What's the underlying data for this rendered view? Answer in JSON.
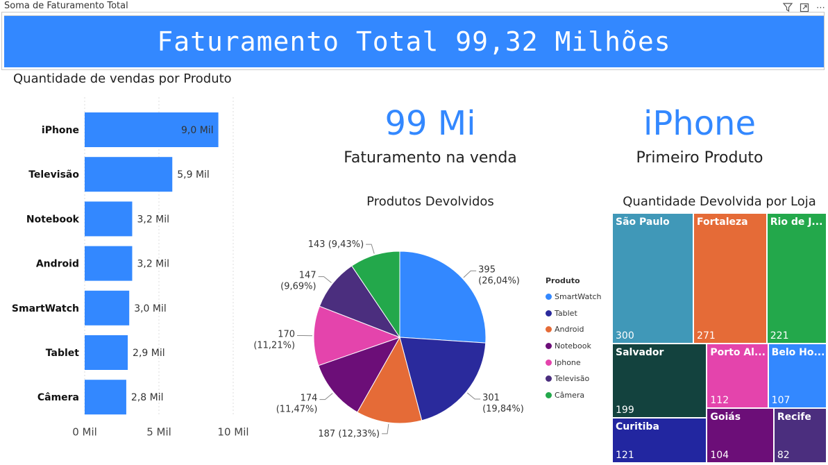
{
  "header": {
    "visual_label": "Soma de Faturamento Total",
    "banner_text": "Faturamento Total 99,32 Milhões"
  },
  "kpis": [
    {
      "value": "99 Mi",
      "label": "Faturamento na venda"
    },
    {
      "value": "iPhone",
      "label": "Primeiro Produto"
    }
  ],
  "colors": {
    "accent": "#3388ff"
  },
  "chart_data": [
    {
      "type": "bar",
      "orientation": "horizontal",
      "title": "Quantidade de vendas por Produto",
      "categories": [
        "iPhone",
        "Televisão",
        "Notebook",
        "Android",
        "SmartWatch",
        "Tablet",
        "Câmera"
      ],
      "values": [
        9000,
        5900,
        3200,
        3200,
        3000,
        2900,
        2800
      ],
      "data_labels": [
        "9,0 Mil",
        "5,9 Mil",
        "3,2 Mil",
        "3,2 Mil",
        "3,0 Mil",
        "2,9 Mil",
        "2,8 Mil"
      ],
      "xlim": [
        0,
        10000
      ],
      "x_ticks": [
        0,
        5000,
        10000
      ],
      "x_tick_labels": [
        "0 Mil",
        "5 Mil",
        "10 Mil"
      ],
      "grid": true,
      "color": "#3388ff"
    },
    {
      "type": "pie",
      "title": "Produtos Devolvidos",
      "legend_title": "Produto",
      "legend_position": "right",
      "labels": [
        "SmartWatch",
        "Tablet",
        "Android",
        "Notebook",
        "Iphone",
        "Televisão",
        "Câmera"
      ],
      "values": [
        395,
        301,
        187,
        174,
        170,
        147,
        143
      ],
      "data_labels": [
        "395 (26,04%)",
        "301 (19,84%)",
        "187 (12,33%)",
        "174 (11,47%)",
        "170 (11,21%)",
        "147 (9,69%)",
        "143 (9,43%)"
      ],
      "colors": [
        "#3388ff",
        "#2a2a9c",
        "#e56b37",
        "#6c0e78",
        "#e444ac",
        "#4b2e7e",
        "#23a84b"
      ]
    },
    {
      "type": "treemap",
      "title": "Quantidade Devolvida por Loja",
      "labels": [
        "São Paulo",
        "Fortaleza",
        "Rio de J...",
        "Salvador",
        "Porto Al...",
        "Belo Ho...",
        "Curitiba",
        "Goiás",
        "Recife"
      ],
      "values": [
        300,
        271,
        221,
        199,
        112,
        107,
        121,
        104,
        82
      ],
      "colors": [
        "#4098b8",
        "#e56b37",
        "#23a84b",
        "#13423e",
        "#e444ac",
        "#3388ff",
        "#2226a0",
        "#6c0e78",
        "#4b2e7e"
      ]
    }
  ]
}
